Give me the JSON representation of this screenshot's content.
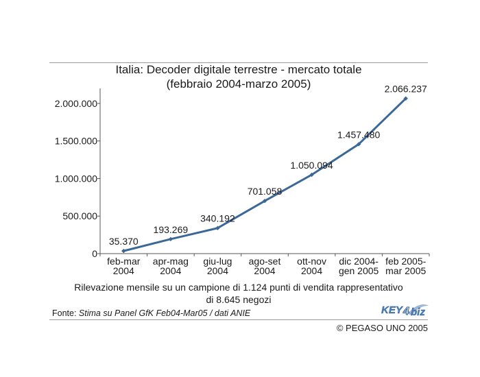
{
  "chart_data": {
    "type": "line",
    "title": "Italia: Decoder digitale terrestre - mercato totale",
    "subtitle": "(febbraio 2004-marzo 2005)",
    "categories": [
      [
        "feb-mar",
        "2004"
      ],
      [
        "apr-mag",
        "2004"
      ],
      [
        "giu-lug",
        "2004"
      ],
      [
        "ago-set",
        "2004"
      ],
      [
        "ott-nov",
        "2004"
      ],
      [
        "dic 2004-",
        "gen 2005"
      ],
      [
        "feb 2005-",
        "mar 2005"
      ]
    ],
    "values": [
      35370,
      193269,
      340192,
      701058,
      1050094,
      1457480,
      2066237
    ],
    "data_labels": [
      "35.370",
      "193.269",
      "340.192",
      "701.058",
      "1.050.094",
      "1.457.480",
      "2.066.237"
    ],
    "ylim": [
      0,
      2200000
    ],
    "yticks": [
      0,
      500000,
      1000000,
      1500000,
      2000000
    ],
    "ytick_labels": [
      "0",
      "500.000",
      "1.000.000",
      "1.500.000",
      "2.000.000"
    ],
    "xlabel": "",
    "ylabel": "",
    "grid": false,
    "line_color": "#3c6898",
    "marker": "diamond"
  },
  "footnote": {
    "line1": "Rilevazione mensile su un campione di 1.124 punti di vendita rappresentativo",
    "line2": "di 8.645 negozi"
  },
  "source": {
    "label": "Fonte: ",
    "text": "Stima su Panel GfK Feb04-Mar05 / dati ANIE"
  },
  "logo": {
    "part1": "KEY",
    "part2": "4",
    "part3": "biz"
  },
  "copyright": "© PEGASO UNO 2005"
}
